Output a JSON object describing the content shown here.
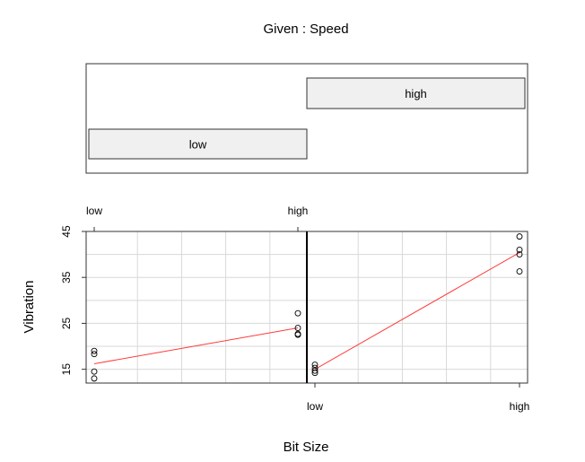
{
  "chart_data": {
    "type": "coplot",
    "given": {
      "title": "Given : Speed",
      "levels": [
        "low",
        "high"
      ]
    },
    "xlabel": "Bit Size",
    "ylabel": "Vibration",
    "x_categories": [
      "low",
      "high"
    ],
    "ylim": [
      12,
      45
    ],
    "yticks": [
      15,
      25,
      35,
      45
    ],
    "grid": true,
    "panels": [
      {
        "given_level": "low",
        "points": [
          {
            "x": "low",
            "y": 19.0
          },
          {
            "x": "low",
            "y": 18.3
          },
          {
            "x": "low",
            "y": 14.5
          },
          {
            "x": "low",
            "y": 13.0
          },
          {
            "x": "high",
            "y": 27.2
          },
          {
            "x": "high",
            "y": 24.0
          },
          {
            "x": "high",
            "y": 22.7
          },
          {
            "x": "high",
            "y": 22.5
          }
        ],
        "fit": [
          {
            "x": "low",
            "y": 16.2
          },
          {
            "x": "high",
            "y": 24.0
          }
        ]
      },
      {
        "given_level": "high",
        "points": [
          {
            "x": "low",
            "y": 16.0
          },
          {
            "x": "low",
            "y": 15.3
          },
          {
            "x": "low",
            "y": 14.7
          },
          {
            "x": "low",
            "y": 14.2
          },
          {
            "x": "high",
            "y": 43.9
          },
          {
            "x": "high",
            "y": 41.0
          },
          {
            "x": "high",
            "y": 40.0
          },
          {
            "x": "high",
            "y": 36.3
          }
        ],
        "fit": [
          {
            "x": "low",
            "y": 15.0
          },
          {
            "x": "high",
            "y": 40.4
          }
        ]
      }
    ]
  }
}
